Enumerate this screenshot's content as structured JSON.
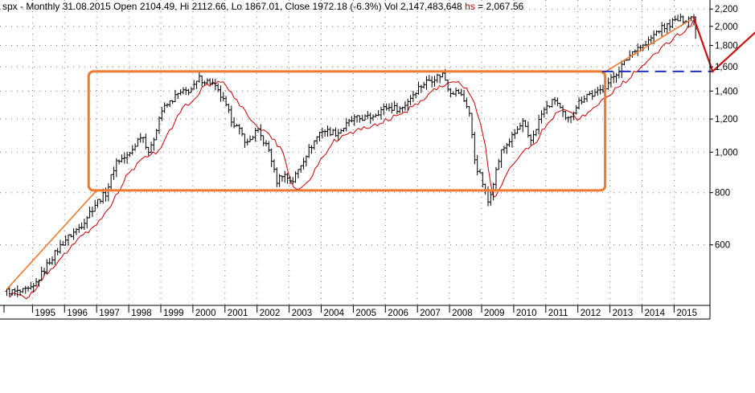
{
  "header": {
    "symbol": "spx",
    "sep": " - ",
    "period": "Monthly 31.08.2015",
    "open_label": "Open",
    "open": "2104.49,",
    "hi_label": "Hi",
    "hi": "2112.66,",
    "lo_label": "Lo",
    "lo": "1867.01,",
    "close_label": "Close",
    "close": "1972.18 (-6.3%)",
    "vol_label": "Vol",
    "vol": "2,147,483,648",
    "hs_label": "hs",
    "hs_value": "= 2,067.56"
  },
  "colors": {
    "background": "#ffffff",
    "bars": "#000000",
    "hs_line": "#cc0000",
    "orange_annotation": "#f07a30",
    "red_arrow": "#cc1111",
    "blue_dashed": "#1f2fbf",
    "grid_dots": "#000000"
  },
  "chart_data": {
    "type": "ohlc",
    "scale": "log",
    "ylim": [
      440,
      2200
    ],
    "y_ticks": [
      600,
      800,
      1000,
      1200,
      1400,
      1600,
      1800,
      2000,
      2200
    ],
    "y_tick_labels": [
      "600",
      "800",
      "1,000",
      "1,200",
      "1,400",
      "1,600",
      "1,800",
      "2,000",
      "2,200"
    ],
    "x_ticks": [
      1995,
      1996,
      1997,
      1998,
      1999,
      2000,
      2001,
      2002,
      2003,
      2004,
      2005,
      2006,
      2007,
      2008,
      2009,
      2010,
      2011,
      2012,
      2013,
      2014,
      2015
    ],
    "x_tick_labels": [
      "1995",
      "1996",
      "1997",
      "1998",
      "1999",
      "2000",
      "2001",
      "2002",
      "2003",
      "2004",
      "2005",
      "2006",
      "2007",
      "2008",
      "2009",
      "2010",
      "2011",
      "2012",
      "2013",
      "2014",
      "2015"
    ],
    "xlim": [
      1994.1,
      2016.3
    ],
    "grid": true,
    "price_anchors": [
      [
        1994.2,
        465
      ],
      [
        1994.6,
        462
      ],
      [
        1995.0,
        470
      ],
      [
        1995.5,
        545
      ],
      [
        1996.0,
        615
      ],
      [
        1996.5,
        665
      ],
      [
        1997.0,
        760
      ],
      [
        1997.3,
        800
      ],
      [
        1997.6,
        950
      ],
      [
        1998.0,
        980
      ],
      [
        1998.4,
        1110
      ],
      [
        1998.65,
        990
      ],
      [
        1999.0,
        1250
      ],
      [
        1999.5,
        1370
      ],
      [
        2000.0,
        1420
      ],
      [
        2000.2,
        1500
      ],
      [
        2000.6,
        1460
      ],
      [
        2000.9,
        1350
      ],
      [
        2001.2,
        1200
      ],
      [
        2001.7,
        1050
      ],
      [
        2002.0,
        1130
      ],
      [
        2002.4,
        1000
      ],
      [
        2002.6,
        850
      ],
      [
        2002.8,
        890
      ],
      [
        2003.1,
        850
      ],
      [
        2003.5,
        980
      ],
      [
        2004.0,
        1130
      ],
      [
        2004.5,
        1110
      ],
      [
        2005.0,
        1200
      ],
      [
        2005.5,
        1210
      ],
      [
        2006.0,
        1280
      ],
      [
        2006.5,
        1270
      ],
      [
        2007.0,
        1420
      ],
      [
        2007.3,
        1480
      ],
      [
        2007.8,
        1540
      ],
      [
        2008.0,
        1400
      ],
      [
        2008.3,
        1390
      ],
      [
        2008.6,
        1270
      ],
      [
        2008.8,
        940
      ],
      [
        2009.0,
        860
      ],
      [
        2009.2,
        760
      ],
      [
        2009.6,
        1000
      ],
      [
        2010.0,
        1100
      ],
      [
        2010.3,
        1180
      ],
      [
        2010.5,
        1050
      ],
      [
        2010.9,
        1250
      ],
      [
        2011.3,
        1340
      ],
      [
        2011.65,
        1180
      ],
      [
        2012.0,
        1310
      ],
      [
        2012.3,
        1380
      ],
      [
        2012.5,
        1370
      ],
      [
        2012.8,
        1420
      ],
      [
        2013.0,
        1480
      ],
      [
        2013.4,
        1620
      ],
      [
        2013.8,
        1780
      ],
      [
        2014.1,
        1800
      ],
      [
        2014.5,
        1960
      ],
      [
        2014.8,
        2010
      ],
      [
        2015.0,
        2060
      ],
      [
        2015.3,
        2080
      ],
      [
        2015.5,
        2100
      ],
      [
        2015.58,
        2104
      ]
    ],
    "last_bar": {
      "x": 2015.67,
      "open": 2104.49,
      "high": 2112.66,
      "low": 1867.01,
      "close": 1972.18
    },
    "hs_series_anchors": [
      [
        1994.3,
        455
      ],
      [
        1994.9,
        450
      ],
      [
        1995.4,
        510
      ],
      [
        1995.9,
        560
      ],
      [
        1996.4,
        615
      ],
      [
        1996.8,
        650
      ],
      [
        1997.2,
        700
      ],
      [
        1997.5,
        760
      ],
      [
        1997.9,
        870
      ],
      [
        1998.3,
        940
      ],
      [
        1998.7,
        990
      ],
      [
        1998.9,
        1000
      ],
      [
        1999.3,
        1130
      ],
      [
        1999.7,
        1280
      ],
      [
        2000.0,
        1330
      ],
      [
        2000.3,
        1420
      ],
      [
        2000.6,
        1460
      ],
      [
        2000.9,
        1470
      ],
      [
        2001.2,
        1380
      ],
      [
        2001.6,
        1260
      ],
      [
        2002.0,
        1150
      ],
      [
        2002.4,
        1100
      ],
      [
        2002.8,
        1000
      ],
      [
        2003.1,
        830
      ],
      [
        2003.4,
        820
      ],
      [
        2003.7,
        870
      ],
      [
        2004.0,
        970
      ],
      [
        2004.4,
        1060
      ],
      [
        2004.8,
        1110
      ],
      [
        2005.2,
        1130
      ],
      [
        2005.7,
        1160
      ],
      [
        2006.2,
        1210
      ],
      [
        2006.7,
        1260
      ],
      [
        2007.1,
        1330
      ],
      [
        2007.5,
        1410
      ],
      [
        2007.9,
        1460
      ],
      [
        2008.2,
        1480
      ],
      [
        2008.5,
        1420
      ],
      [
        2008.8,
        1300
      ],
      [
        2009.1,
        1050
      ],
      [
        2009.35,
        780
      ],
      [
        2009.6,
        820
      ],
      [
        2009.9,
        930
      ],
      [
        2010.3,
        1000
      ],
      [
        2010.7,
        1060
      ],
      [
        2011.0,
        1160
      ],
      [
        2011.4,
        1260
      ],
      [
        2011.7,
        1270
      ],
      [
        2012.0,
        1200
      ],
      [
        2012.4,
        1250
      ],
      [
        2012.7,
        1320
      ],
      [
        2013.0,
        1380
      ],
      [
        2013.4,
        1460
      ],
      [
        2013.8,
        1560
      ],
      [
        2014.2,
        1650
      ],
      [
        2014.6,
        1770
      ],
      [
        2015.0,
        1880
      ],
      [
        2015.4,
        1960
      ],
      [
        2015.6,
        2067.56
      ]
    ],
    "annotations": {
      "trend_line": [
        [
          1994.2,
          470
        ],
        [
          1997.0,
          810
        ]
      ],
      "trend_line_2": [
        [
          2012.75,
          1540
        ],
        [
          2015.5,
          2070
        ]
      ],
      "range_box": {
        "x0": 1996.75,
        "x1": 2012.85,
        "y_low": 810,
        "y_high": 1560
      },
      "support_dashed": {
        "x0": 2012.75,
        "x1": 2016.2,
        "y": 1560
      },
      "forecast_arrow": [
        [
          2015.6,
          2110
        ],
        [
          2016.2,
          1560
        ],
        [
          2017.8,
          2020
        ]
      ]
    }
  }
}
